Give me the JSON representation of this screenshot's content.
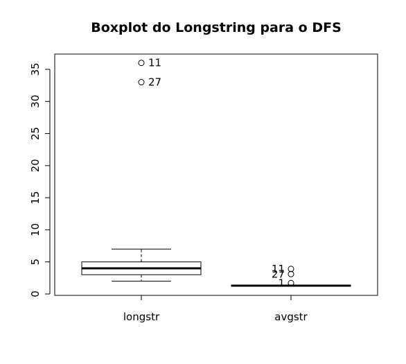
{
  "chart_data": {
    "type": "boxplot",
    "title": "Boxplot do Longstring para o DFS",
    "xlabel": "",
    "ylabel": "",
    "ylim": [
      -0.3,
      35.8
    ],
    "yticks": [
      0,
      5,
      10,
      15,
      20,
      25,
      30,
      35
    ],
    "categories": [
      "longstr",
      "avgstr"
    ],
    "boxes": [
      {
        "name": "longstr",
        "whisker_low": 2,
        "q1": 3,
        "median": 4,
        "q3": 5,
        "whisker_high": 7,
        "outliers": [
          {
            "value": 36,
            "label": "11"
          },
          {
            "value": 33,
            "label": "27"
          }
        ]
      },
      {
        "name": "avgstr",
        "whisker_low": 1.2,
        "q1": 1.2,
        "median": 1.3,
        "q3": 1.4,
        "whisker_high": 1.4,
        "outliers": [
          {
            "value": 3.9,
            "label": "11"
          },
          {
            "value": 3.1,
            "label": "27"
          },
          {
            "value": 1.7,
            "label": "1"
          }
        ]
      }
    ]
  }
}
